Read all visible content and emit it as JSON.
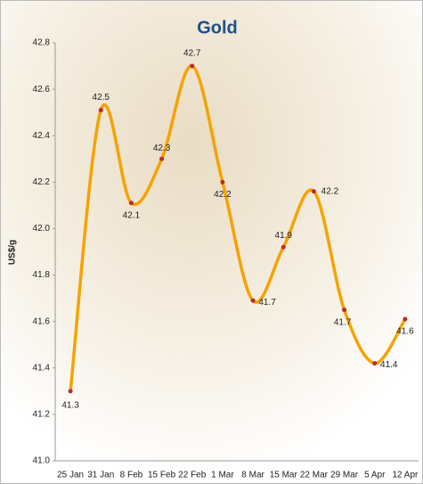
{
  "chart_data": {
    "type": "line",
    "title": "Gold",
    "y_label": "US$/g",
    "categories": [
      "25 Jan",
      "31 Jan",
      "8 Feb",
      "15 Feb",
      "22 Feb",
      "1 Mar",
      "8 Mar",
      "15 Mar",
      "22 Mar",
      "29 Mar",
      "5 Apr",
      "12 Apr"
    ],
    "series": [
      {
        "name": "Gold",
        "color": "#f5a300",
        "marker_color": "#c0282d",
        "values": [
          41.3,
          42.51,
          42.11,
          42.3,
          42.7,
          42.2,
          41.69,
          41.92,
          42.16,
          41.65,
          41.42,
          41.61
        ],
        "value_labels": [
          "41.3",
          "42.5",
          "42.1",
          "42.3",
          "42.7",
          "42.2",
          "41.7",
          "41.9",
          "42.2",
          "41.7",
          "41.4",
          "41.6"
        ]
      }
    ],
    "ylim": [
      41.0,
      42.8
    ],
    "yticks": [
      {
        "value": 41.0,
        "label": "41.0"
      },
      41.2,
      41.4,
      41.6,
      41.8,
      {
        "value": 42.0,
        "label": "42.0"
      },
      42.2,
      42.4,
      42.6,
      42.8
    ],
    "smooth": true
  }
}
